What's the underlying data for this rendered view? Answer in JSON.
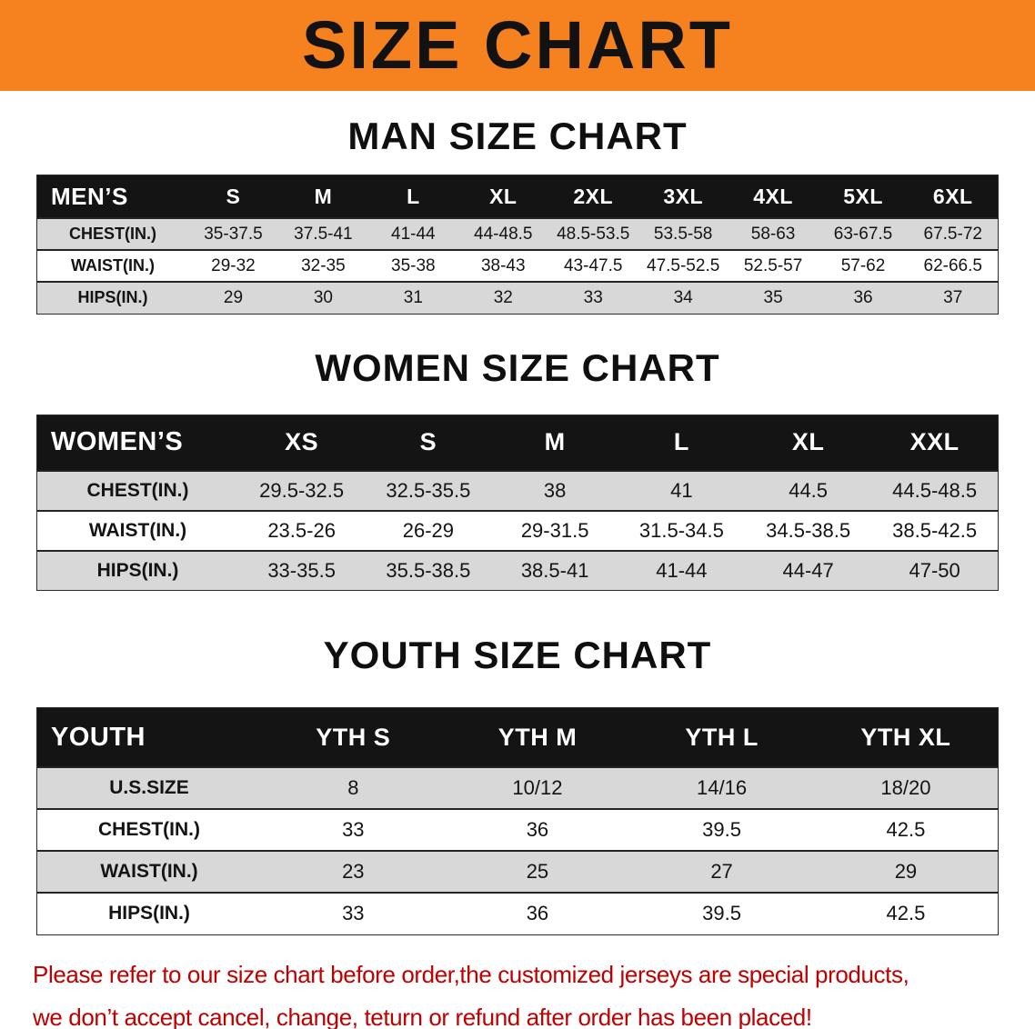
{
  "banner": {
    "title": "SIZE CHART"
  },
  "men": {
    "section_title": "MAN SIZE CHART",
    "table": {
      "header": [
        "MEN’S",
        "S",
        "M",
        "L",
        "XL",
        "2XL",
        "3XL",
        "4XL",
        "5XL",
        "6XL"
      ],
      "rows": [
        [
          "CHEST(IN.)",
          "35-37.5",
          "37.5-41",
          "41-44",
          "44-48.5",
          "48.5-53.5",
          "53.5-58",
          "58-63",
          "63-67.5",
          "67.5-72"
        ],
        [
          "WAIST(IN.)",
          "29-32",
          "32-35",
          "35-38",
          "38-43",
          "43-47.5",
          "47.5-52.5",
          "52.5-57",
          "57-62",
          "62-66.5"
        ],
        [
          "HIPS(IN.)",
          "29",
          "30",
          "31",
          "32",
          "33",
          "34",
          "35",
          "36",
          "37"
        ]
      ]
    }
  },
  "women": {
    "section_title": "WOMEN SIZE CHART",
    "table": {
      "header": [
        "WOMEN’S",
        "XS",
        "S",
        "M",
        "L",
        "XL",
        "XXL"
      ],
      "rows": [
        [
          "CHEST(IN.)",
          "29.5-32.5",
          "32.5-35.5",
          "38",
          "41",
          "44.5",
          "44.5-48.5"
        ],
        [
          "WAIST(IN.)",
          "23.5-26",
          "26-29",
          "29-31.5",
          "31.5-34.5",
          "34.5-38.5",
          "38.5-42.5"
        ],
        [
          "HIPS(IN.)",
          "33-35.5",
          "35.5-38.5",
          "38.5-41",
          "41-44",
          "44-47",
          "47-50"
        ]
      ]
    }
  },
  "youth": {
    "section_title": "YOUTH SIZE CHART",
    "table": {
      "header": [
        "YOUTH",
        "YTH S",
        "YTH M",
        "YTH L",
        "YTH XL"
      ],
      "rows": [
        [
          "U.S.SIZE",
          "8",
          "10/12",
          "14/16",
          "18/20"
        ],
        [
          "CHEST(IN.)",
          "33",
          "36",
          "39.5",
          "42.5"
        ],
        [
          "WAIST(IN.)",
          "23",
          "25",
          "27",
          "29"
        ],
        [
          "HIPS(IN.)",
          "33",
          "36",
          "39.5",
          "42.5"
        ]
      ]
    }
  },
  "footer": {
    "line1": "Please refer to our size chart before order,the customized jerseys are special products,",
    "line2": "we don’t accept cancel, change, teturn or refund after order has been placed!"
  },
  "colors": {
    "banner_orange": "#f5821f",
    "header_black": "#141414",
    "row_gray": "#d8d8d8",
    "footer_red": "#bf0000"
  }
}
